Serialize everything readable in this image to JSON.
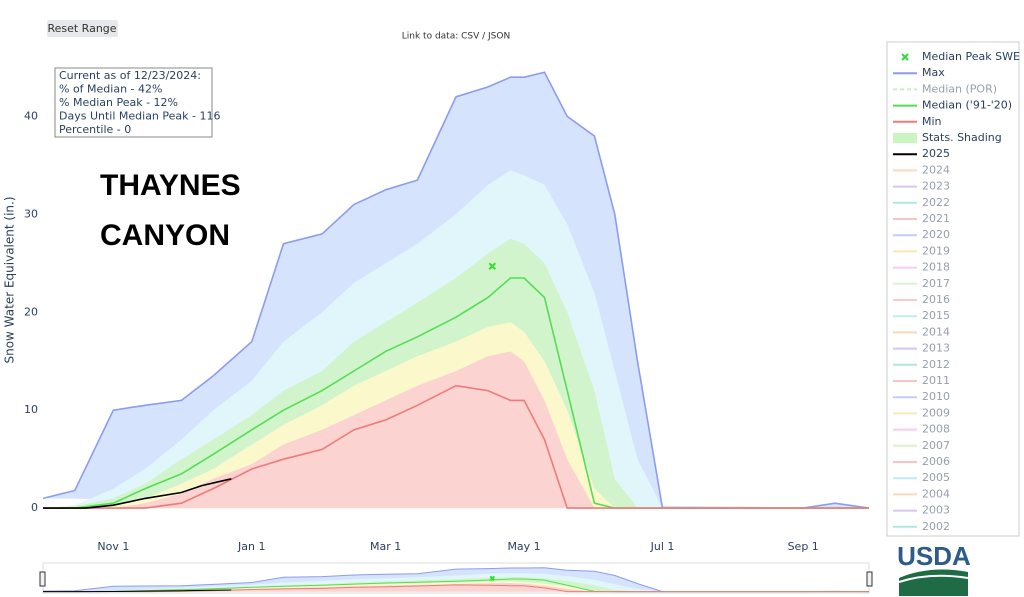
{
  "chart_data": {
    "type": "line",
    "station": [
      "THAYNES",
      "CANYON"
    ],
    "button": "Reset Range",
    "link_text": "Link to data: CSV / JSON",
    "annotation": [
      "Current as of 12/23/2024:",
      "% of Median - 42%",
      "% Median Peak - 12%",
      "Days Until Median Peak - 116",
      "Percentile - 0"
    ],
    "y_label": "Snow Water Equivalent (in.)",
    "logo": "USDA",
    "xlim": [
      "Oct 1",
      "Sep 30"
    ],
    "xticks": [
      "Nov 1",
      "Jan 1",
      "Mar 1",
      "May 1",
      "Jul 1",
      "Sep 1"
    ],
    "ylim": [
      -0.7,
      47.8
    ],
    "yticks": [
      0,
      10,
      20,
      30,
      40
    ],
    "x": [
      "Oct 1",
      "Oct 15",
      "Nov 1",
      "Nov 15",
      "Dec 1",
      "Dec 15",
      "Jan 1",
      "Jan 15",
      "Feb 1",
      "Feb 15",
      "Mar 1",
      "Mar 15",
      "Apr 1",
      "Apr 15",
      "Apr 25",
      "May 1",
      "May 10",
      "May 20",
      "Jun 1",
      "Jun 10",
      "Jun 20",
      "Jul 1",
      "Jul 15",
      "Aug 1",
      "Sep 1",
      "Sep 15",
      "Sep 30"
    ],
    "peak": {
      "name": "Median Peak SWE",
      "color": "#33dd33",
      "x": "Apr 17",
      "y": 24.7
    },
    "series": [
      {
        "name": "Max",
        "color": "#8c9cf0",
        "fill": "#d6e3fc",
        "values": [
          1,
          1.8,
          10,
          10.5,
          11,
          13.5,
          17,
          27,
          28,
          31,
          32.5,
          33.5,
          42,
          43,
          44,
          44,
          44.5,
          40,
          38,
          30,
          15,
          0,
          0,
          0,
          0,
          0.5,
          0
        ]
      },
      {
        "name": "Median (POR)",
        "color": "#99dd99",
        "dash": true,
        "visible": "legendonly"
      },
      {
        "name": "Median ('91-'20)",
        "color": "#55dd55",
        "values": [
          0,
          0,
          0.5,
          2,
          3.5,
          5.5,
          8,
          10,
          12,
          14,
          16,
          17.5,
          19.5,
          21.5,
          23.5,
          23.5,
          21.5,
          12,
          0.5,
          0,
          0,
          0,
          0,
          0,
          0,
          0,
          0
        ]
      },
      {
        "name": "Min",
        "color": "#ee7b7b",
        "values": [
          0,
          0,
          0,
          0,
          0.5,
          2,
          4,
          5,
          6,
          8,
          9,
          10.5,
          12.5,
          12,
          11,
          11,
          7,
          0,
          0,
          0,
          0,
          0,
          0,
          0,
          0,
          0,
          0
        ]
      },
      {
        "name": "Stats. Shading",
        "color": "#c9f5c0",
        "bands": [
          {
            "color": "#e0f6fb",
            "values": [
              0,
              0.3,
              2,
              4,
              7,
              10,
              13,
              17,
              20,
              23,
              25,
              27,
              30,
              33,
              34.5,
              34,
              33,
              29,
              22,
              14,
              5,
              0,
              0,
              0,
              0,
              0,
              0
            ]
          },
          {
            "color": "#d2f4cc",
            "values": [
              0,
              0.2,
              1,
              2.5,
              5,
              7,
              9.5,
              12,
              14,
              17,
              19,
              21,
              23.5,
              26,
              27.5,
              27,
              25,
              20,
              12,
              3,
              0,
              0,
              0,
              0,
              0,
              0,
              0
            ]
          },
          {
            "color": "#fbf8cb",
            "values": [
              0,
              0,
              0.2,
              1,
              2.5,
              4,
              6.5,
              8.5,
              10.5,
              12.5,
              14,
              15.5,
              17,
              18.5,
              19,
              18,
              15,
              10,
              2,
              0,
              0,
              0,
              0,
              0,
              0,
              0,
              0
            ]
          },
          {
            "color": "#fbd3d1",
            "values": [
              0,
              0,
              0,
              0.5,
              1.5,
              3,
              4.5,
              6.5,
              8,
              9.5,
              11,
              12.5,
              14,
              15.5,
              16,
              15,
              11,
              5,
              0,
              0,
              0,
              0,
              0,
              0,
              0,
              0,
              0
            ]
          }
        ]
      },
      {
        "name": "2025",
        "color": "#000000",
        "x": [
          "Oct 1",
          "Oct 20",
          "Nov 1",
          "Nov 15",
          "Dec 1",
          "Dec 10",
          "Dec 23"
        ],
        "values": [
          0,
          0,
          0.3,
          1,
          1.6,
          2.3,
          3
        ]
      },
      {
        "name": "2024",
        "color": "#f5b37a",
        "visible": "legendonly"
      },
      {
        "name": "2023",
        "color": "#b58de0",
        "visible": "legendonly"
      },
      {
        "name": "2022",
        "color": "#5fd1b8",
        "visible": "legendonly"
      },
      {
        "name": "2021",
        "color": "#f08a80",
        "visible": "legendonly"
      },
      {
        "name": "2020",
        "color": "#8a9cf0",
        "visible": "legendonly"
      },
      {
        "name": "2019",
        "color": "#f7d070",
        "visible": "legendonly"
      },
      {
        "name": "2018",
        "color": "#f29be0",
        "visible": "legendonly"
      },
      {
        "name": "2017",
        "color": "#b8e89a",
        "visible": "legendonly"
      },
      {
        "name": "2016",
        "color": "#f59a9a",
        "visible": "legendonly"
      },
      {
        "name": "2015",
        "color": "#7fd8ea",
        "visible": "legendonly"
      },
      {
        "name": "2014",
        "color": "#f5b37a",
        "visible": "legendonly"
      },
      {
        "name": "2013",
        "color": "#b58de0",
        "visible": "legendonly"
      },
      {
        "name": "2012",
        "color": "#5fd1b8",
        "visible": "legendonly"
      },
      {
        "name": "2011",
        "color": "#f08a80",
        "visible": "legendonly"
      },
      {
        "name": "2010",
        "color": "#8a9cf0",
        "visible": "legendonly"
      },
      {
        "name": "2009",
        "color": "#f7d070",
        "visible": "legendonly"
      },
      {
        "name": "2008",
        "color": "#f29be0",
        "visible": "legendonly"
      },
      {
        "name": "2007",
        "color": "#b8e89a",
        "visible": "legendonly"
      },
      {
        "name": "2006",
        "color": "#f08a80",
        "visible": "legendonly"
      },
      {
        "name": "2005",
        "color": "#7fd8ea",
        "visible": "legendonly"
      },
      {
        "name": "2004",
        "color": "#f5b37a",
        "visible": "legendonly"
      },
      {
        "name": "2003",
        "color": "#b58de0",
        "visible": "legendonly"
      },
      {
        "name": "2002",
        "color": "#5fd1b8",
        "visible": "legendonly"
      }
    ]
  }
}
